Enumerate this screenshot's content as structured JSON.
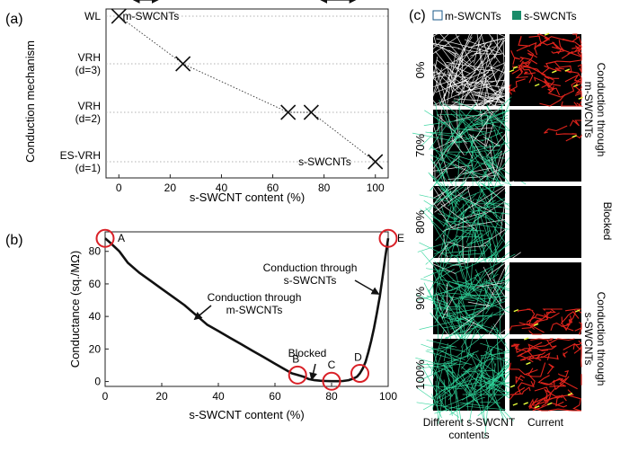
{
  "panels": {
    "a_label": "(a)",
    "b_label": "(b)",
    "c_label": "(c)"
  },
  "chart_data": [
    {
      "type": "scatter",
      "panel": "(a)",
      "xlabel": "s-SWCNT content (%)",
      "ylabel": "Conduction mechanism",
      "xlim": [
        -5,
        105
      ],
      "xticks": [
        0,
        20,
        40,
        60,
        80,
        100
      ],
      "categories": [
        "WL",
        "VRH\n(d=3)",
        "VRH\n(d=2)",
        "ES-VRH\n(d=1)"
      ],
      "grid": "horizontal-dotted",
      "points": [
        {
          "x": 0,
          "y": 3
        },
        {
          "x": 25,
          "y": 2
        },
        {
          "x": 66,
          "y": 1
        },
        {
          "x": 75,
          "y": 1
        },
        {
          "x": 100,
          "y": 0
        }
      ],
      "annotations": [
        "m-SWCNTs",
        "s-SWCNTs"
      ],
      "marker_color": "#111111"
    },
    {
      "type": "line",
      "panel": "(b)",
      "xlabel": "s-SWCNT content (%)",
      "ylabel": "Conductance (sq./MΩ)",
      "xlim": [
        0,
        100
      ],
      "ylim": [
        -3,
        92
      ],
      "xticks": [
        0,
        20,
        40,
        60,
        80,
        100
      ],
      "yticks": [
        0,
        20,
        40,
        60,
        80
      ],
      "x": [
        0,
        2,
        5,
        8,
        12,
        16,
        20,
        24,
        28,
        32,
        36,
        40,
        44,
        48,
        52,
        56,
        60,
        63,
        66,
        68,
        70,
        72,
        74,
        76,
        78,
        80,
        82,
        84,
        86,
        88,
        89,
        90,
        91,
        92,
        93,
        94,
        95,
        96,
        97,
        98,
        99,
        100
      ],
      "y": [
        88,
        85,
        80,
        73,
        67,
        62,
        57,
        52,
        47,
        41,
        35,
        31,
        27,
        23,
        19,
        15,
        11,
        8,
        5,
        4,
        3,
        1.5,
        0.8,
        0.5,
        0.3,
        0.2,
        0.2,
        0.3,
        0.8,
        2,
        3,
        5,
        8,
        12,
        18,
        25,
        33,
        42,
        52,
        64,
        77,
        88
      ],
      "points": [
        {
          "label": "A",
          "x": 0,
          "y": 88
        },
        {
          "label": "B",
          "x": 68,
          "y": 4
        },
        {
          "label": "C",
          "x": 80,
          "y": 0.2
        },
        {
          "label": "D",
          "x": 90,
          "y": 5
        },
        {
          "label": "E",
          "x": 100,
          "y": 88
        }
      ],
      "annotations": [
        "Conduction through\ns-SWCNTs",
        "Conduction through\nm-SWCNTs",
        "Blocked"
      ],
      "line_color": "#111111",
      "marker_color": "#d92027"
    }
  ],
  "panel_c": {
    "legend": [
      {
        "label": "m-SWCNTs",
        "color": "#ffffff"
      },
      {
        "label": "s-SWCNTs",
        "color": "#1a8c6a"
      }
    ],
    "rows": [
      {
        "content": "0%",
        "m_frac": 1.0
      },
      {
        "content": "70%",
        "m_frac": 0.3
      },
      {
        "content": "80%",
        "m_frac": 0.2
      },
      {
        "content": "90%",
        "m_frac": 0.1
      },
      {
        "content": "100%",
        "m_frac": 0.0
      }
    ],
    "side_labels": [
      "Conduction through\nm-SWCNTs",
      "Blocked",
      "Conduction through\ns-SWCNTs"
    ],
    "col_labels": [
      "Different s-SWCNT\ncontents",
      "Current"
    ],
    "colors": {
      "m": "#ffffff",
      "s": "#2fd49a",
      "current": "#e0241c",
      "hot": "#e8ff3a",
      "bg": "#000000"
    }
  }
}
